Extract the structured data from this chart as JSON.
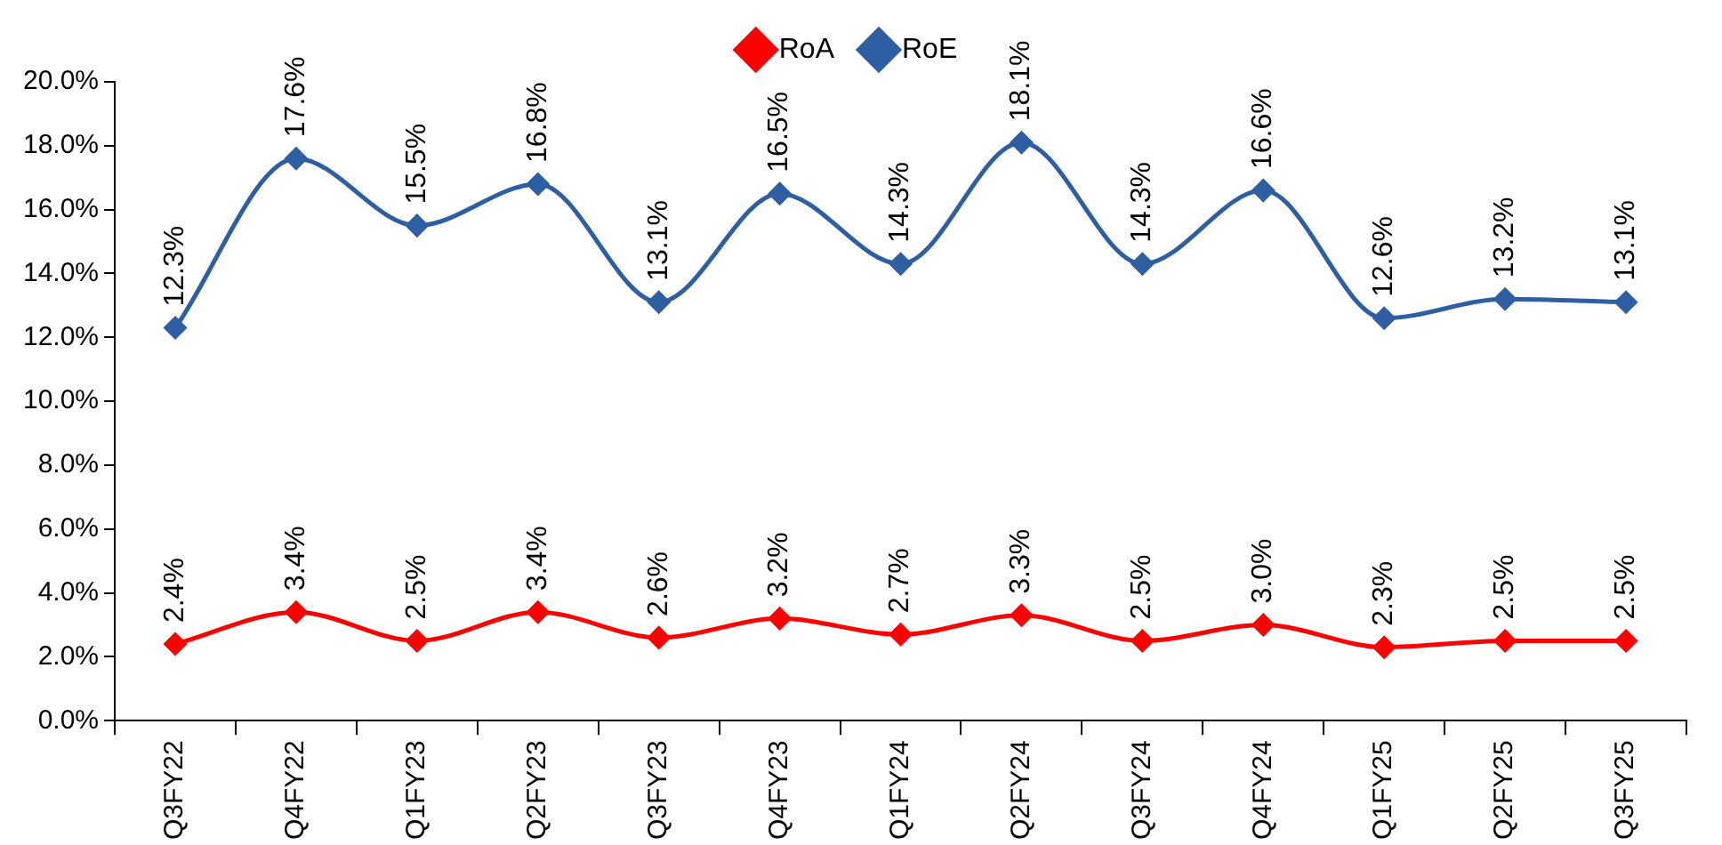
{
  "chart_data": {
    "type": "line",
    "categories": [
      "Q3FY22",
      "Q4FY22",
      "Q1FY23",
      "Q2FY23",
      "Q3FY23",
      "Q4FY23",
      "Q1FY24",
      "Q2FY24",
      "Q3FY24",
      "Q4FY24",
      "Q1FY25",
      "Q2FY25",
      "Q3FY25"
    ],
    "series": [
      {
        "name": "RoA",
        "color": "#ff0000",
        "values": [
          2.4,
          3.4,
          2.5,
          3.4,
          2.6,
          3.2,
          2.7,
          3.3,
          2.5,
          3.0,
          2.3,
          2.5,
          2.5
        ],
        "value_labels": [
          "2.4%",
          "3.4%",
          "2.5%",
          "3.4%",
          "2.6%",
          "3.2%",
          "2.7%",
          "3.3%",
          "2.5%",
          "3.0%",
          "2.3%",
          "2.5%",
          "2.5%"
        ]
      },
      {
        "name": "RoE",
        "color": "#2e5fa3",
        "values": [
          12.3,
          17.6,
          15.5,
          16.8,
          13.1,
          16.5,
          14.3,
          18.1,
          14.3,
          16.6,
          12.6,
          13.2,
          13.1
        ],
        "value_labels": [
          "12.3%",
          "17.6%",
          "15.5%",
          "16.8%",
          "13.1%",
          "16.5%",
          "14.3%",
          "18.1%",
          "14.3%",
          "16.6%",
          "12.6%",
          "13.2%",
          "13.1%"
        ]
      }
    ],
    "ylim": [
      0,
      20
    ],
    "yticks": [
      {
        "value": 0,
        "label": "0.0%"
      },
      {
        "value": 2,
        "label": "2.0%"
      },
      {
        "value": 4,
        "label": "4.0%"
      },
      {
        "value": 6,
        "label": "6.0%"
      },
      {
        "value": 8,
        "label": "8.0%"
      },
      {
        "value": 10,
        "label": "10.0%"
      },
      {
        "value": 12,
        "label": "12.0%"
      },
      {
        "value": 14,
        "label": "14.0%"
      },
      {
        "value": 16,
        "label": "16.0%"
      },
      {
        "value": 18,
        "label": "18.0%"
      },
      {
        "value": 20,
        "label": "20.0%"
      }
    ],
    "grid": false,
    "legend": "top",
    "marker": "diamond",
    "line_style": "solid"
  }
}
